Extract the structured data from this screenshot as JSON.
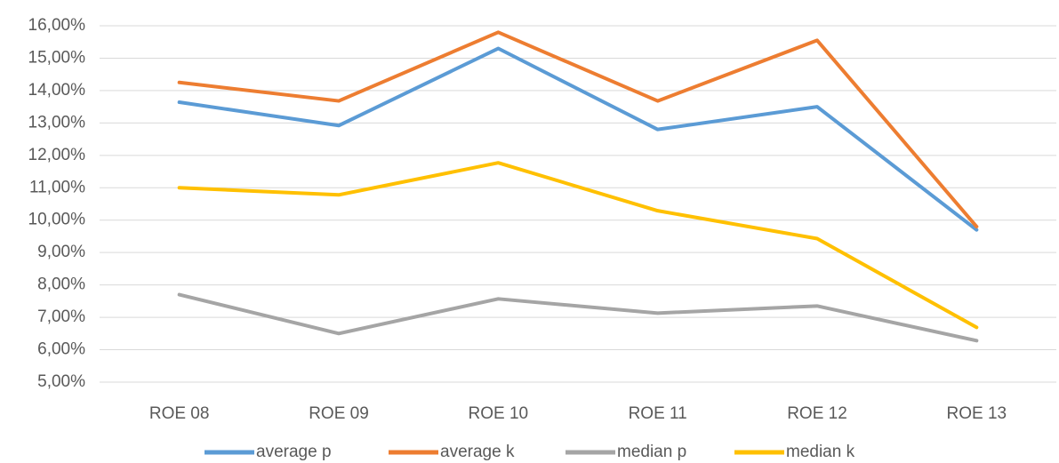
{
  "chart_data": {
    "type": "line",
    "categories": [
      "ROE 08",
      "ROE 09",
      "ROE 10",
      "ROE 11",
      "ROE 12",
      "ROE 13"
    ],
    "series": [
      {
        "name": "average p",
        "color": "#5b9bd5",
        "values": [
          13.64,
          12.92,
          15.3,
          12.8,
          13.5,
          9.7
        ]
      },
      {
        "name": "average k",
        "color": "#ed7d31",
        "values": [
          14.25,
          13.68,
          15.8,
          13.68,
          15.55,
          9.8
        ]
      },
      {
        "name": "median p",
        "color": "#a5a5a5",
        "values": [
          7.7,
          6.5,
          7.57,
          7.13,
          7.35,
          6.28
        ]
      },
      {
        "name": "median k",
        "color": "#ffc000",
        "values": [
          11.0,
          10.78,
          11.77,
          10.29,
          9.43,
          6.69
        ]
      }
    ],
    "ylim": [
      5,
      16
    ],
    "yticks": [
      {
        "value": 5,
        "label": "5,00%"
      },
      {
        "value": 6,
        "label": "6,00%"
      },
      {
        "value": 7,
        "label": "7,00%"
      },
      {
        "value": 8,
        "label": "8,00%"
      },
      {
        "value": 9,
        "label": "9,00%"
      },
      {
        "value": 10,
        "label": "10,00%"
      },
      {
        "value": 11,
        "label": "11,00%"
      },
      {
        "value": 12,
        "label": "12,00%"
      },
      {
        "value": 13,
        "label": "13,00%"
      },
      {
        "value": 14,
        "label": "14,00%"
      },
      {
        "value": 15,
        "label": "15,00%"
      },
      {
        "value": 16,
        "label": "16,00%"
      }
    ],
    "grid": true
  }
}
